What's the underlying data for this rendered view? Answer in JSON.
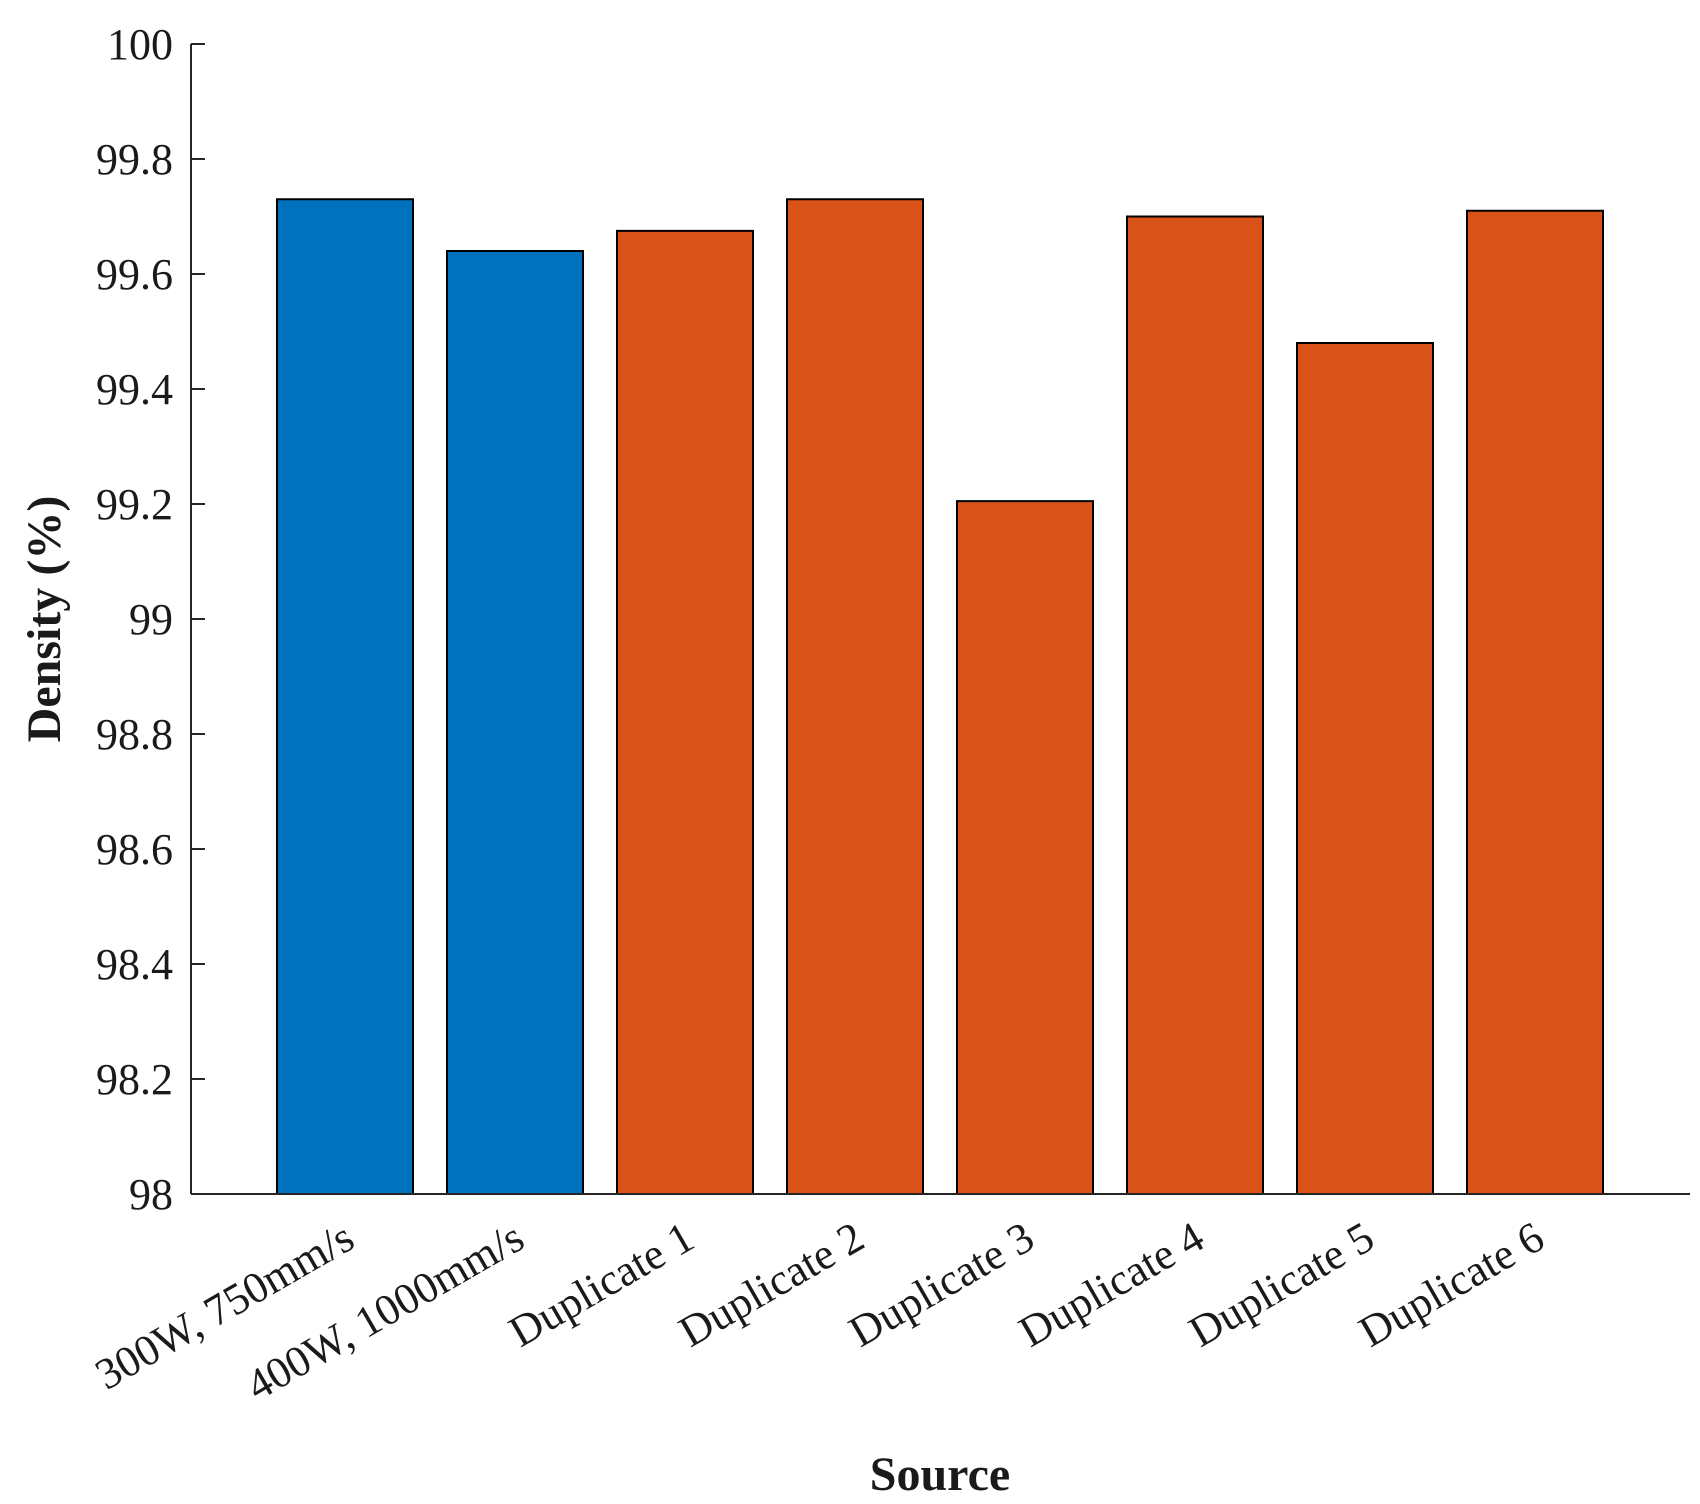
{
  "chart_data": {
    "type": "bar",
    "title": "",
    "xlabel": "Source",
    "ylabel": "Density (%)",
    "ylim": [
      98,
      100
    ],
    "yticks": [
      98,
      98.2,
      98.4,
      98.6,
      98.8,
      99,
      99.2,
      99.4,
      99.6,
      99.8,
      100
    ],
    "ytick_labels": [
      "98",
      "98.2",
      "98.4",
      "98.6",
      "98.8",
      "99",
      "99.2",
      "99.4",
      "99.6",
      "99.8",
      "100"
    ],
    "categories": [
      "300W, 750mm/s",
      "400W, 1000mm/s",
      "Duplicate 1",
      "Duplicate 2",
      "Duplicate 3",
      "Duplicate 4",
      "Duplicate 5",
      "Duplicate 6"
    ],
    "values": [
      99.73,
      99.64,
      99.675,
      99.73,
      99.205,
      99.7,
      99.48,
      99.71
    ],
    "bar_colors": [
      "#0072BD",
      "#0072BD",
      "#D95319",
      "#D95319",
      "#D95319",
      "#D95319",
      "#D95319",
      "#D95319"
    ],
    "grid": false,
    "legend": "none"
  }
}
